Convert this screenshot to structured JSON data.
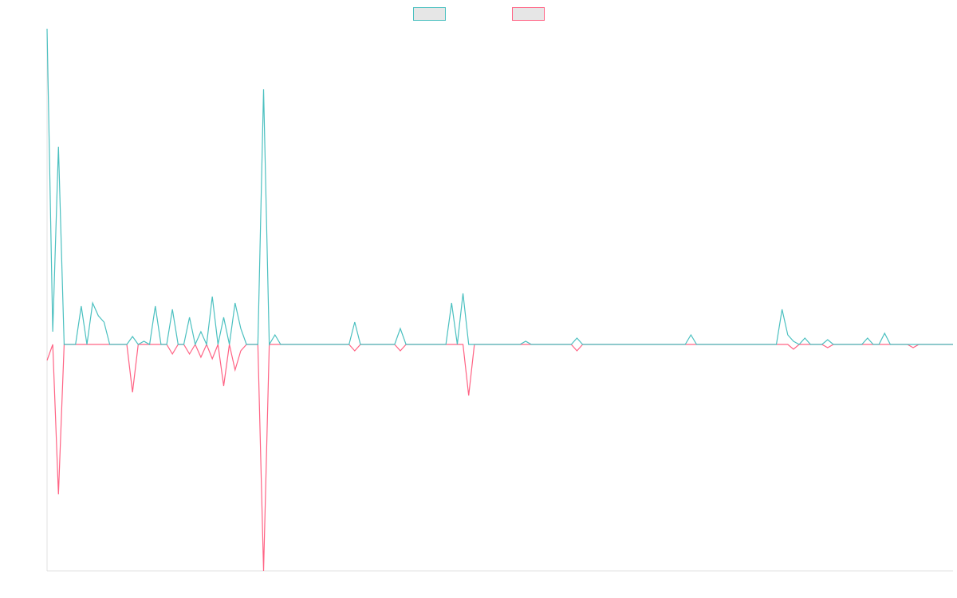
{
  "chart_data": {
    "type": "line",
    "categories": [
      null,
      null,
      null,
      null,
      null,
      null,
      null,
      null,
      null,
      null,
      null,
      null,
      null,
      null,
      null,
      null,
      null,
      null,
      null,
      null,
      null,
      null,
      null,
      null,
      null,
      null,
      null,
      null,
      null,
      null,
      null,
      null,
      null,
      null,
      null,
      null,
      null,
      null,
      null,
      null,
      null,
      null,
      null,
      null,
      null,
      null,
      null,
      null,
      null,
      null,
      null,
      null,
      null,
      null,
      null,
      null,
      null,
      null,
      null,
      null,
      null,
      null,
      null,
      null,
      null,
      null,
      null,
      null,
      null,
      null,
      null,
      null,
      null,
      null,
      null,
      null,
      null,
      null,
      null,
      null,
      null,
      null,
      null,
      null,
      null,
      null,
      null,
      null,
      null,
      null,
      null,
      null,
      null,
      null,
      null,
      null,
      null,
      null,
      null,
      null,
      null,
      null,
      null,
      null,
      null,
      null,
      null,
      null,
      null,
      null,
      null,
      null,
      null,
      null,
      null,
      null,
      null,
      null,
      null,
      null,
      null,
      null,
      null,
      null,
      null,
      null,
      null,
      null,
      null,
      null,
      null,
      null,
      null,
      null,
      null,
      null,
      null,
      null,
      null,
      null,
      null,
      null,
      null,
      null,
      null,
      null,
      null,
      null,
      null,
      null,
      null,
      null,
      null,
      null,
      null,
      null,
      null,
      null,
      null,
      null
    ],
    "series": [
      {
        "color": "#4bc0c0",
        "values": [
          99,
          4,
          62,
          0,
          0,
          0,
          12,
          0,
          13,
          9,
          7,
          0,
          0,
          0,
          0,
          2.5,
          0,
          1,
          0,
          12,
          0,
          0,
          11,
          0,
          0,
          8.5,
          0,
          4,
          0,
          15,
          0,
          8.5,
          0,
          13,
          5,
          0,
          0,
          0,
          80,
          0,
          3,
          0,
          0,
          0,
          0,
          0,
          0,
          0,
          0,
          0,
          0,
          0,
          0,
          0,
          7,
          0,
          0,
          0,
          0,
          0,
          0,
          0,
          5,
          0,
          0,
          0,
          0,
          0,
          0,
          0,
          0,
          13,
          0,
          16,
          0,
          0,
          0,
          0,
          0,
          0,
          0,
          0,
          0,
          0,
          1,
          0,
          0,
          0,
          0,
          0,
          0,
          0,
          0,
          2,
          0,
          0,
          0,
          0,
          0,
          0,
          0,
          0,
          0,
          0,
          0,
          0,
          0,
          0,
          0,
          0,
          0,
          0,
          0,
          3,
          0,
          0,
          0,
          0,
          0,
          0,
          0,
          0,
          0,
          0,
          0,
          0,
          0,
          0,
          0,
          11,
          3,
          1,
          0,
          2,
          0,
          0,
          0,
          1.5,
          0,
          0,
          0,
          0,
          0,
          0,
          2,
          0,
          0,
          3.5,
          0,
          0,
          0,
          0,
          0,
          0,
          0,
          0,
          0,
          0,
          0,
          0
        ]
      },
      {
        "color": "#ff6384",
        "values": [
          -5,
          0,
          -47,
          0,
          0,
          0,
          0,
          0,
          0,
          0,
          0,
          0,
          0,
          0,
          0,
          -15,
          0,
          0,
          0,
          0,
          0,
          0,
          -3,
          0,
          0,
          -3,
          0,
          -4,
          0,
          -4.5,
          0,
          -13,
          0,
          -8,
          -2,
          0,
          0,
          0,
          -71,
          0,
          0,
          0,
          0,
          0,
          0,
          0,
          0,
          0,
          0,
          0,
          0,
          0,
          0,
          0,
          -2,
          0,
          0,
          0,
          0,
          0,
          0,
          0,
          -2,
          0,
          0,
          0,
          0,
          0,
          0,
          0,
          0,
          0,
          0,
          0,
          -16,
          0,
          0,
          0,
          0,
          0,
          0,
          0,
          0,
          0,
          0,
          0,
          0,
          0,
          0,
          0,
          0,
          0,
          0,
          -2,
          0,
          0,
          0,
          0,
          0,
          0,
          0,
          0,
          0,
          0,
          0,
          0,
          0,
          0,
          0,
          0,
          0,
          0,
          0,
          0,
          0,
          0,
          0,
          0,
          0,
          0,
          0,
          0,
          0,
          0,
          0,
          0,
          0,
          0,
          0,
          0,
          0,
          -1.5,
          0,
          0,
          0,
          0,
          0,
          -1,
          0,
          0,
          0,
          0,
          0,
          0,
          0,
          0,
          0,
          0,
          0,
          0,
          0,
          0,
          -1,
          0,
          0,
          0,
          0,
          0,
          0,
          0
        ]
      }
    ],
    "ylim": [
      -71,
      99
    ],
    "grid": false,
    "legend": "top"
  }
}
